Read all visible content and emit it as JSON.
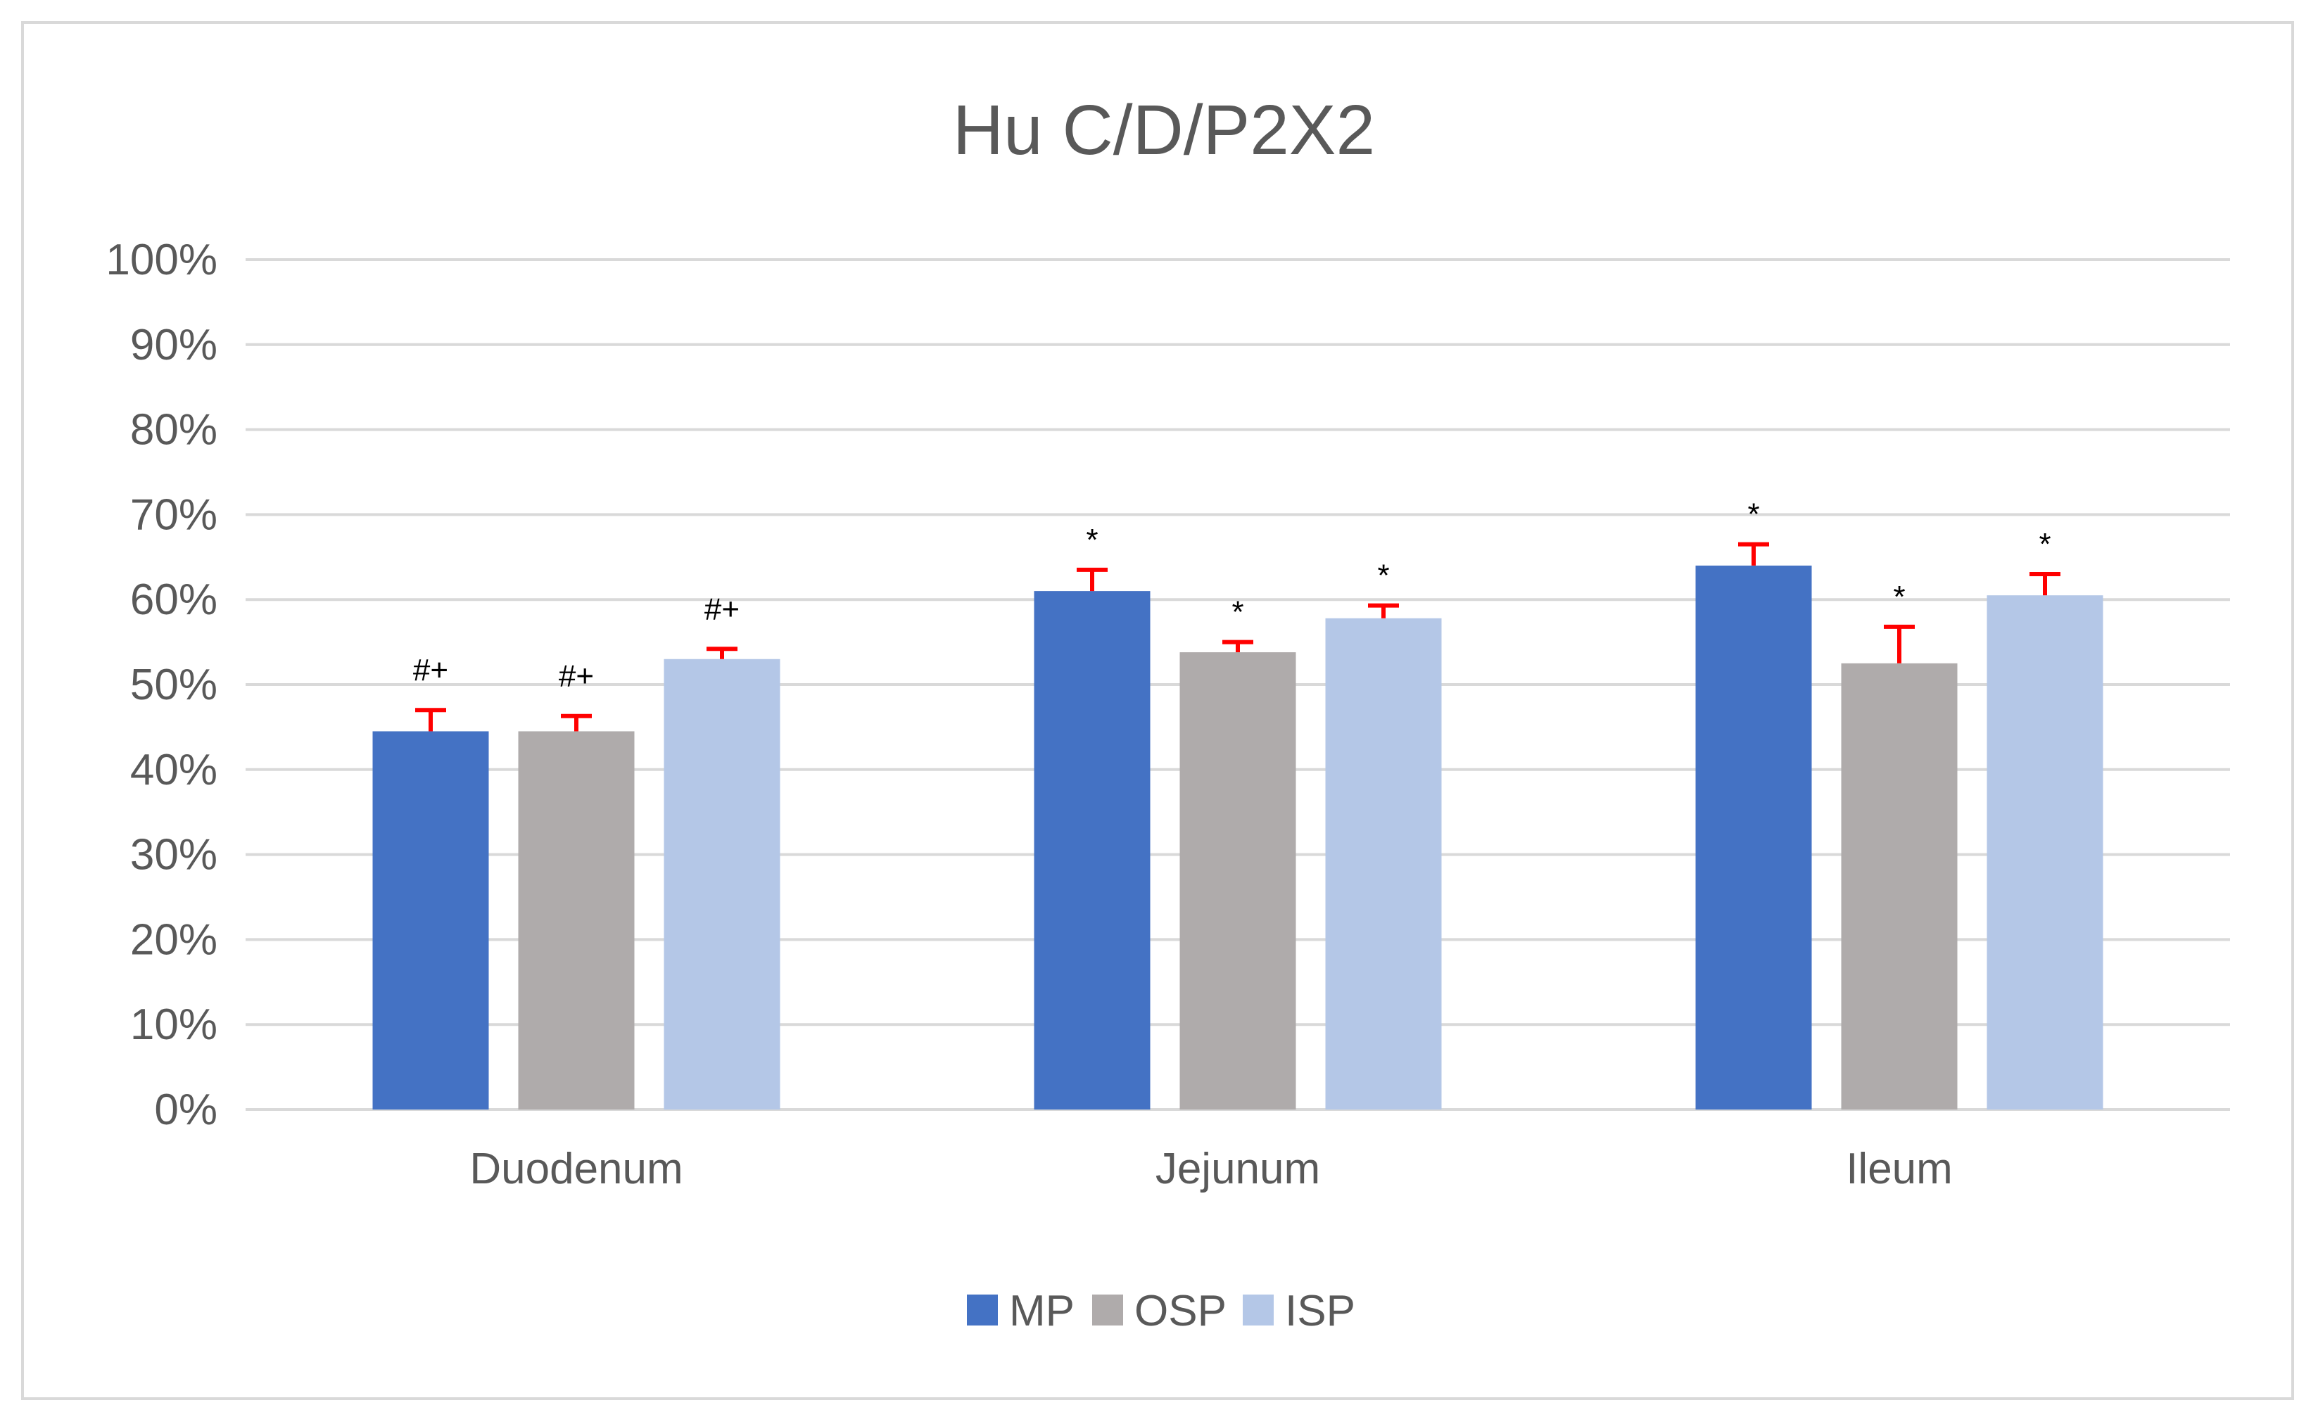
{
  "chart_data": {
    "type": "bar",
    "title": "Hu C/D/P2X2",
    "xlabel": "",
    "ylabel": "",
    "ylim": [
      0,
      100
    ],
    "yticks": [
      "0%",
      "10%",
      "20%",
      "30%",
      "40%",
      "50%",
      "60%",
      "70%",
      "80%",
      "90%",
      "100%"
    ],
    "grid": true,
    "legend_position": "bottom",
    "categories": [
      "Duodenum",
      "Jejunum",
      "Ileum"
    ],
    "series": [
      {
        "name": "MP",
        "color": "#4472c4",
        "values": [
          44.5,
          61,
          64
        ],
        "errors": [
          2.5,
          2.5,
          2.5
        ],
        "annotations": [
          "#+",
          "*",
          "*"
        ]
      },
      {
        "name": "OSP",
        "color": "#afabab",
        "values": [
          44.5,
          53.8,
          52.5
        ],
        "errors": [
          1.8,
          1.2,
          4.3
        ],
        "annotations": [
          "#+",
          "*",
          "*"
        ]
      },
      {
        "name": "ISP",
        "color": "#b4c7e7",
        "values": [
          53,
          57.8,
          60.5
        ],
        "errors": [
          1.2,
          1.5,
          2.5
        ],
        "annotations": [
          "#+",
          "*",
          "*"
        ]
      }
    ],
    "error_bar_color": "#ff0000"
  }
}
